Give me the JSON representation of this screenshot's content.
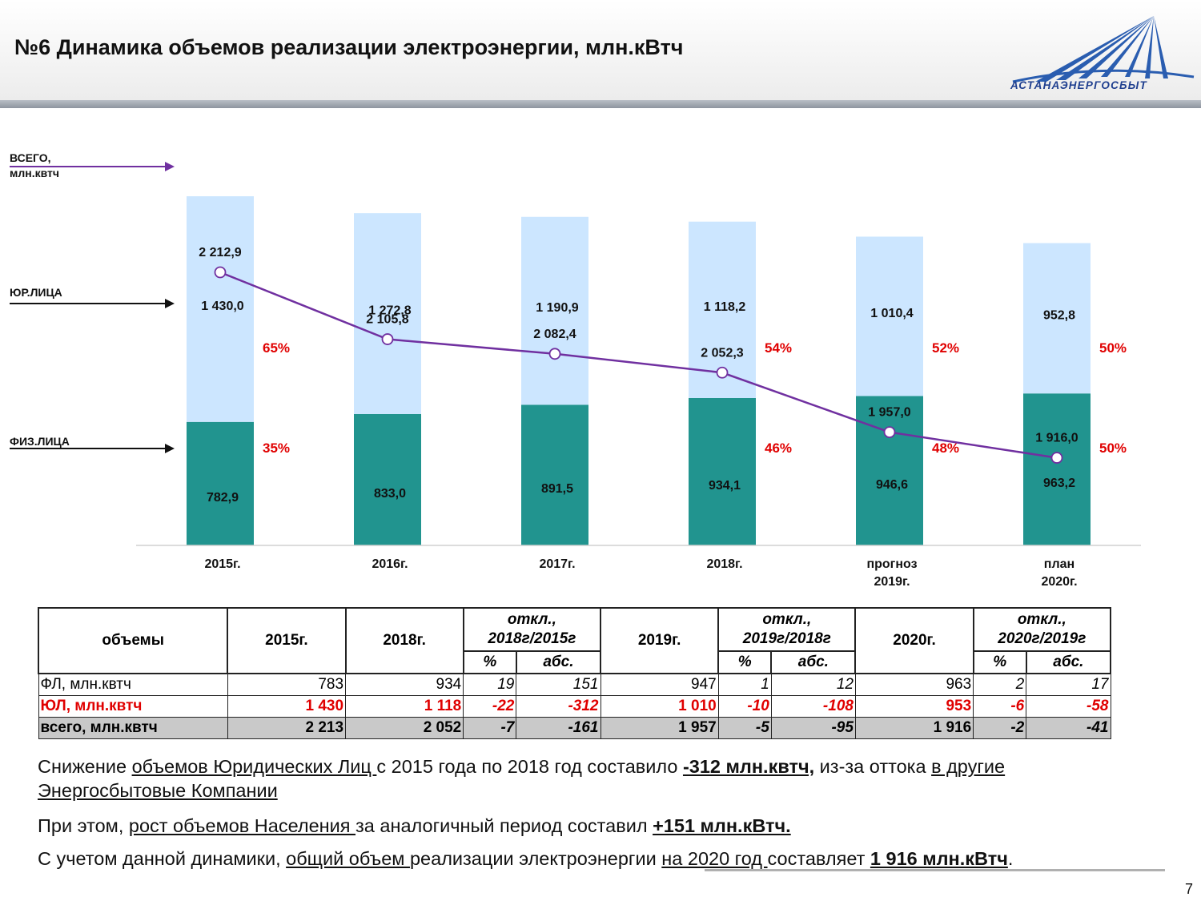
{
  "header": {
    "title": "№6 Динамика объемов реализации электроэнергии, млн.кВтч",
    "logo_text": "АСТАНАЭНЕРГОСБЫТ"
  },
  "side_labels": {
    "total_line1": "ВСЕГО,",
    "total_line2": "млн.квтч",
    "legal": "ЮР.ЛИЦА",
    "physical": "ФИЗ.ЛИЦА"
  },
  "chart_data": {
    "type": "bar",
    "stacked": true,
    "categories": [
      [
        "2015г."
      ],
      [
        "2016г."
      ],
      [
        "2017г."
      ],
      [
        "2018г."
      ],
      [
        "прогноз",
        "2019г."
      ],
      [
        "план",
        "2020г."
      ]
    ],
    "series": [
      {
        "name": "ФИЗ.ЛИЦА",
        "values": [
          782.9,
          833.0,
          891.5,
          934.1,
          946.6,
          963.2
        ],
        "labels": [
          "782,9",
          "833,0",
          "891,5",
          "934,1",
          "946,6",
          "963,2"
        ],
        "pct": [
          "35%",
          "",
          "",
          "46%",
          "48%",
          "50%"
        ],
        "color": "#21948f"
      },
      {
        "name": "ЮР.ЛИЦА",
        "values": [
          1430.0,
          1272.8,
          1190.9,
          1118.2,
          1010.4,
          952.8
        ],
        "labels": [
          "1 430,0",
          "1 272,8",
          "1 190,9",
          "1 118,2",
          "1 010,4",
          "952,8"
        ],
        "pct": [
          "65%",
          "",
          "",
          "54%",
          "52%",
          "50%"
        ],
        "color": "#cce6ff"
      }
    ],
    "total_line": {
      "name": "ВСЕГО, млн.квтч",
      "values": [
        2212.9,
        2105.8,
        2082.4,
        2052.3,
        1957.0,
        1916.0
      ],
      "labels": [
        "2 212,9",
        "2 105,8",
        "2 082,4",
        "2 052,3",
        "1 957,0",
        "1 916,0"
      ],
      "color": "#7030a0"
    },
    "ylim": [
      0,
      2500
    ],
    "grid": false,
    "pct_color": "#e00000"
  },
  "table": {
    "h_volume": "объемы",
    "h_2015": "2015г.",
    "h_2018": "2018г.",
    "h_dev1_l1": "откл.,",
    "h_dev1_l2": "2018г/2015г",
    "h_2019": "2019г.",
    "h_dev2_l1": "откл.,",
    "h_dev2_l2": "2019г/2018г",
    "h_2020": "2020г.",
    "h_dev3_l1": "откл.,",
    "h_dev3_l2": "2020г/2019г",
    "h_pct": "%",
    "h_abs": "абс.",
    "rows": [
      [
        "ФЛ, млн.квтч",
        "783",
        "934",
        "19",
        "151",
        "947",
        "1",
        "12",
        "963",
        "2",
        "17"
      ],
      [
        "ЮЛ, млн.квтч",
        "1 430",
        "1 118",
        "-22",
        "-312",
        "1 010",
        "-10",
        "-108",
        "953",
        "-6",
        "-58"
      ],
      [
        "всего, млн.квтч",
        "2 213",
        "2 052",
        "-7",
        "-161",
        "1 957",
        "-5",
        "-95",
        "1 916",
        "-2",
        "-41"
      ]
    ]
  },
  "text": {
    "p1_a": "Снижение ",
    "p1_b": "объемов Юридических Лиц ",
    "p1_c": "с 2015 года по 2018 год составило ",
    "p1_d": "-312 млн.квтч,",
    "p1_e": " из-за оттока ",
    "p1_f": "в другие Энергосбытовые Компании",
    "p2_a": "При этом, ",
    "p2_b": "рост объемов Населения ",
    "p2_c": "за аналогичный период составил ",
    "p2_d": "+151 млн.кВтч.",
    "p3_a": "С учетом данной динамики, ",
    "p3_b": "общий объем ",
    "p3_c": "реализации электроэнергии ",
    "p3_d": "на 2020 год ",
    "p3_e": "составляет ",
    "p3_f": "1 916 млн.кВтч",
    "p3_g": "."
  },
  "page_number": "7"
}
